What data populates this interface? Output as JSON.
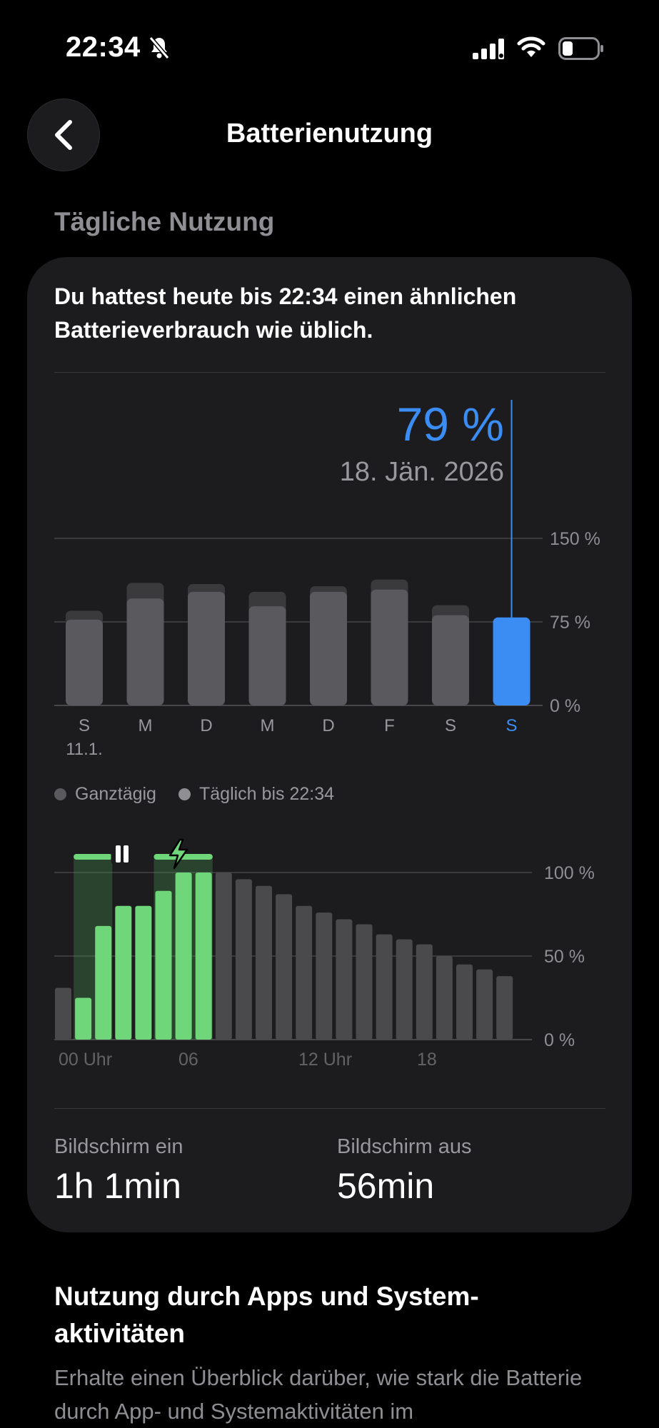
{
  "status_bar": {
    "time": "22:34"
  },
  "nav": {
    "title": "Batterienutzung"
  },
  "section": {
    "title": "Tägliche Nutzung"
  },
  "card": {
    "summary": "Du hattest heute bis 22:34 einen ähnlichen Batterieverbrauch wie üblich.",
    "selected": {
      "percent": "79 %",
      "date": "18. Jän. 2026"
    },
    "legend": {
      "all_day": "Ganztägig",
      "until_now": "Täglich bis 22:34"
    },
    "stats": {
      "screen_on_label": "Bildschirm ein",
      "screen_on_value": "1h 1min",
      "screen_off_label": "Bildschirm aus",
      "screen_off_value": "56min"
    }
  },
  "apps_section": {
    "title": "Nutzung durch Apps und System-aktivitäten",
    "description": "Erhalte einen Überblick darüber, wie stark die Batterie durch App- und Systemaktivitäten im"
  },
  "colors": {
    "accent": "#3b8df3",
    "charging": "#6fd67a",
    "bar_gray": "#5a5a5e"
  },
  "chart_data": [
    {
      "type": "bar",
      "title": "",
      "categories": [
        "S",
        "M",
        "D",
        "M",
        "D",
        "F",
        "S",
        "S"
      ],
      "sub_labels": [
        "11.1.",
        "",
        "",
        "",
        "",
        "",
        "",
        ""
      ],
      "yticks": [
        "0 %",
        "75 %",
        "150 %"
      ],
      "ylim": [
        0,
        150
      ],
      "selected_index": 7,
      "series": [
        {
          "name": "Ganztägig",
          "values": [
            85,
            110,
            109,
            102,
            107,
            113,
            90,
            79
          ]
        },
        {
          "name": "Täglich bis 22:34",
          "values": [
            77,
            96,
            102,
            89,
            102,
            104,
            81,
            79
          ]
        }
      ]
    },
    {
      "type": "bar",
      "title": "",
      "xticks": [
        "00 Uhr",
        "06",
        "12 Uhr",
        "18"
      ],
      "yticks": [
        "0 %",
        "50 %",
        "100 %"
      ],
      "ylim": [
        0,
        100
      ],
      "values": [
        31,
        25,
        68,
        80,
        80,
        89,
        100,
        100,
        100,
        96,
        92,
        87,
        80,
        76,
        72,
        69,
        63,
        60,
        57,
        50,
        45,
        42,
        38
      ],
      "charging": [
        false,
        true,
        true,
        true,
        true,
        true,
        true,
        true,
        false,
        false,
        false,
        false,
        false,
        false,
        false,
        false,
        false,
        false,
        false,
        false,
        false,
        false,
        false
      ],
      "plugged_ranges": [
        [
          1,
          2
        ],
        [
          5,
          7
        ]
      ],
      "icons": [
        "pause-icon",
        "lightning-icon"
      ]
    }
  ]
}
